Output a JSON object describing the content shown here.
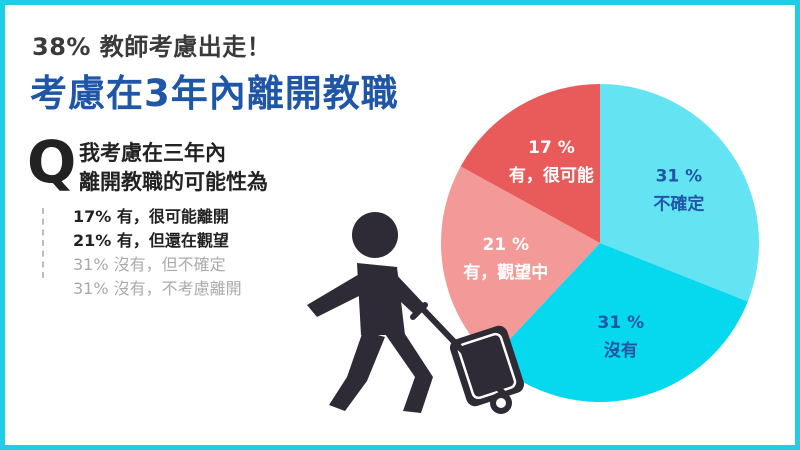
{
  "header": {
    "subtitle": "38% 教師考慮出走！",
    "title": "考慮在3年內離開教職"
  },
  "question": {
    "marker": "Q",
    "lines": [
      "我考慮在三年內",
      "離開教職的可能性為"
    ]
  },
  "options": [
    {
      "text": "17% 有，很可能離開",
      "emphasis": "dark"
    },
    {
      "text": "21% 有，但還在觀望",
      "emphasis": "dark"
    },
    {
      "text": "31% 沒有，但不確定",
      "emphasis": "light"
    },
    {
      "text": "31% 沒有，不考慮離開",
      "emphasis": "light"
    }
  ],
  "colors": {
    "frame": "#1ecfe4",
    "title": "#1f56a8",
    "figure": "#2e2a36"
  },
  "icons": [
    "traveler-with-suitcase-icon"
  ],
  "chart_data": {
    "type": "pie",
    "start_angle_deg": 0,
    "direction": "clockwise",
    "slices": [
      {
        "label": "不確定",
        "pct": "31",
        "value": 31,
        "color": "#64e4f3",
        "text_color": "#1f56a8"
      },
      {
        "label": "沒有",
        "pct": "31",
        "value": 31,
        "color": "#06d8ee",
        "text_color": "#1f56a8"
      },
      {
        "label": "有，觀望中",
        "pct": "21",
        "value": 21,
        "color": "#f39a98",
        "text_color": "#ffffff"
      },
      {
        "label": "有，很可能",
        "pct": "17",
        "value": 17,
        "color": "#e95a5a",
        "text_color": "#ffffff"
      }
    ],
    "percent_sign": "%"
  }
}
